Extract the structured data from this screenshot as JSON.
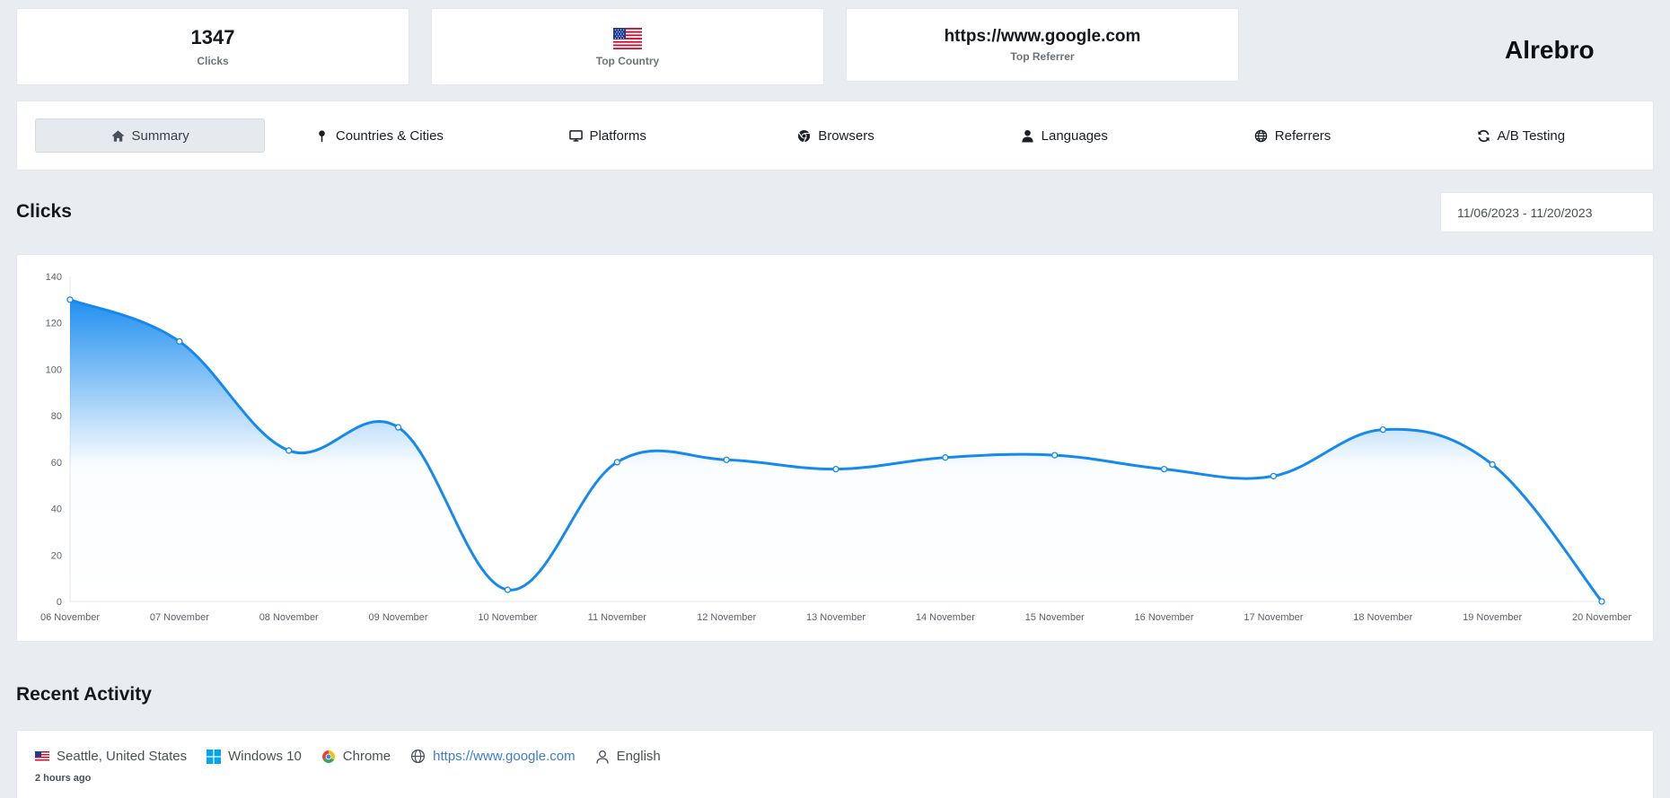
{
  "stats": {
    "clicks_value": "1347",
    "clicks_label": "Clicks",
    "country_flag": "us-flag-icon",
    "country_label": "Top Country",
    "referrer_value": "https://www.google.com",
    "referrer_label": "Top Referrer"
  },
  "brand": "Alrebro",
  "tabs": [
    {
      "label": "Summary",
      "icon": "home-icon",
      "active": true
    },
    {
      "label": "Countries & Cities",
      "icon": "map-pin-icon",
      "active": false
    },
    {
      "label": "Platforms",
      "icon": "desktop-icon",
      "active": false
    },
    {
      "label": "Browsers",
      "icon": "chrome-icon",
      "active": false
    },
    {
      "label": "Languages",
      "icon": "user-icon",
      "active": false
    },
    {
      "label": "Referrers",
      "icon": "globe-icon",
      "active": false
    },
    {
      "label": "A/B Testing",
      "icon": "refresh-icon",
      "active": false
    }
  ],
  "clicks_section": {
    "title": "Clicks",
    "date_range": "11/06/2023 - 11/20/2023"
  },
  "chart_data": {
    "type": "area",
    "categories": [
      "06 November",
      "07 November",
      "08 November",
      "09 November",
      "10 November",
      "11 November",
      "12 November",
      "13 November",
      "14 November",
      "15 November",
      "16 November",
      "17 November",
      "18 November",
      "19 November",
      "20 November"
    ],
    "values": [
      130,
      112,
      65,
      75,
      5,
      60,
      61,
      57,
      62,
      63,
      57,
      54,
      74,
      59,
      0
    ],
    "yticks": [
      0,
      20,
      40,
      60,
      80,
      100,
      120,
      140
    ],
    "ylim": [
      0,
      140
    ],
    "line_color": "#1589ee",
    "grid": false
  },
  "recent_activity": {
    "title": "Recent Activity",
    "items": [
      {
        "location": "Seattle, United States",
        "platform": "Windows 10",
        "browser": "Chrome",
        "referrer": "https://www.google.com",
        "language": "English",
        "time": "2 hours ago"
      }
    ]
  }
}
